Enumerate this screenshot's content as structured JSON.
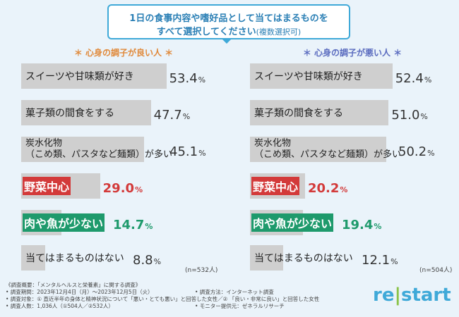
{
  "header": {
    "line1": "1日の食事内容や嗜好品として当てはまるものを",
    "line2": "すべて選択してください",
    "line2_note": "(複数選択可)"
  },
  "colors": {
    "bar_gray": "#cfcfcf",
    "highlight_red": "#d33a3a",
    "highlight_green": "#1e9a6c",
    "accent_blue": "#3fa9d8"
  },
  "chart_data": [
    {
      "type": "bar",
      "title": "＊ 心身の調子が良い人 ＊",
      "categories": [
        "スイーツや甘味類が好き",
        "菓子類の間食をする",
        "炭水化物（こめ類、パスタなど麺類）が多い",
        "野菜中心",
        "肉や魚が少ない",
        "当てはまるものはない"
      ],
      "label_lines": [
        [
          "スイーツや甘味類が好き"
        ],
        [
          "菓子類の間食をする"
        ],
        [
          "炭水化物",
          "（こめ類、パスタなど麺類）が多い"
        ],
        [
          "野菜中心"
        ],
        [
          "肉や魚が少ない"
        ],
        [
          "当てはまるものはない"
        ]
      ],
      "values": [
        53.4,
        47.7,
        45.1,
        29.0,
        14.7,
        8.8
      ],
      "value_labels": [
        "53.4",
        "47.7",
        "45.1",
        "29.0",
        "14.7",
        "8.8"
      ],
      "highlight": [
        "none",
        "none",
        "none",
        "red",
        "green",
        "none"
      ],
      "unit": "%",
      "n_label": "(n=532人)",
      "ylim": [
        0,
        100
      ]
    },
    {
      "type": "bar",
      "title": "＊ 心身の調子が悪い人 ＊",
      "categories": [
        "スイーツや甘味類が好き",
        "菓子類の間食をする",
        "炭水化物（こめ類、パスタなど麺類）が多い",
        "野菜中心",
        "肉や魚が少ない",
        "当てはまるものはない"
      ],
      "label_lines": [
        [
          "スイーツや甘味類が好き"
        ],
        [
          "菓子類の間食をする"
        ],
        [
          "炭水化物",
          "（こめ類、パスタなど麺類）が多い"
        ],
        [
          "野菜中心"
        ],
        [
          "肉や魚が少ない"
        ],
        [
          "当てはまるものはない"
        ]
      ],
      "values": [
        52.4,
        51.0,
        50.2,
        20.2,
        19.4,
        12.1
      ],
      "value_labels": [
        "52.4",
        "51.0",
        "50.2",
        "20.2",
        "19.4",
        "12.1"
      ],
      "highlight": [
        "none",
        "none",
        "none",
        "red",
        "green",
        "none"
      ],
      "unit": "%",
      "n_label": "(n=504人)",
      "ylim": [
        0,
        100
      ]
    }
  ],
  "footer": {
    "left_lines": [
      "《調査概要：「メンタルヘルスと栄養素」に関する調査》",
      "• 調査期間：2023年12月4日（月）〜2023年12月5日（火）",
      "• 調査対象：① 直近半年の身体と精神状況について「悪い・とても悪い」と回答した女性／② 「良い・非常に良い」と回答した女性",
      "• 調査人数：1,036人（①504人／②532人）"
    ],
    "right_lines": [
      "• 調査方法：インターネット調査",
      "",
      "• モニター提供元：ゼネラルリサーチ"
    ]
  },
  "logo": {
    "part1": "re",
    "sep": "|",
    "part2": "start"
  }
}
